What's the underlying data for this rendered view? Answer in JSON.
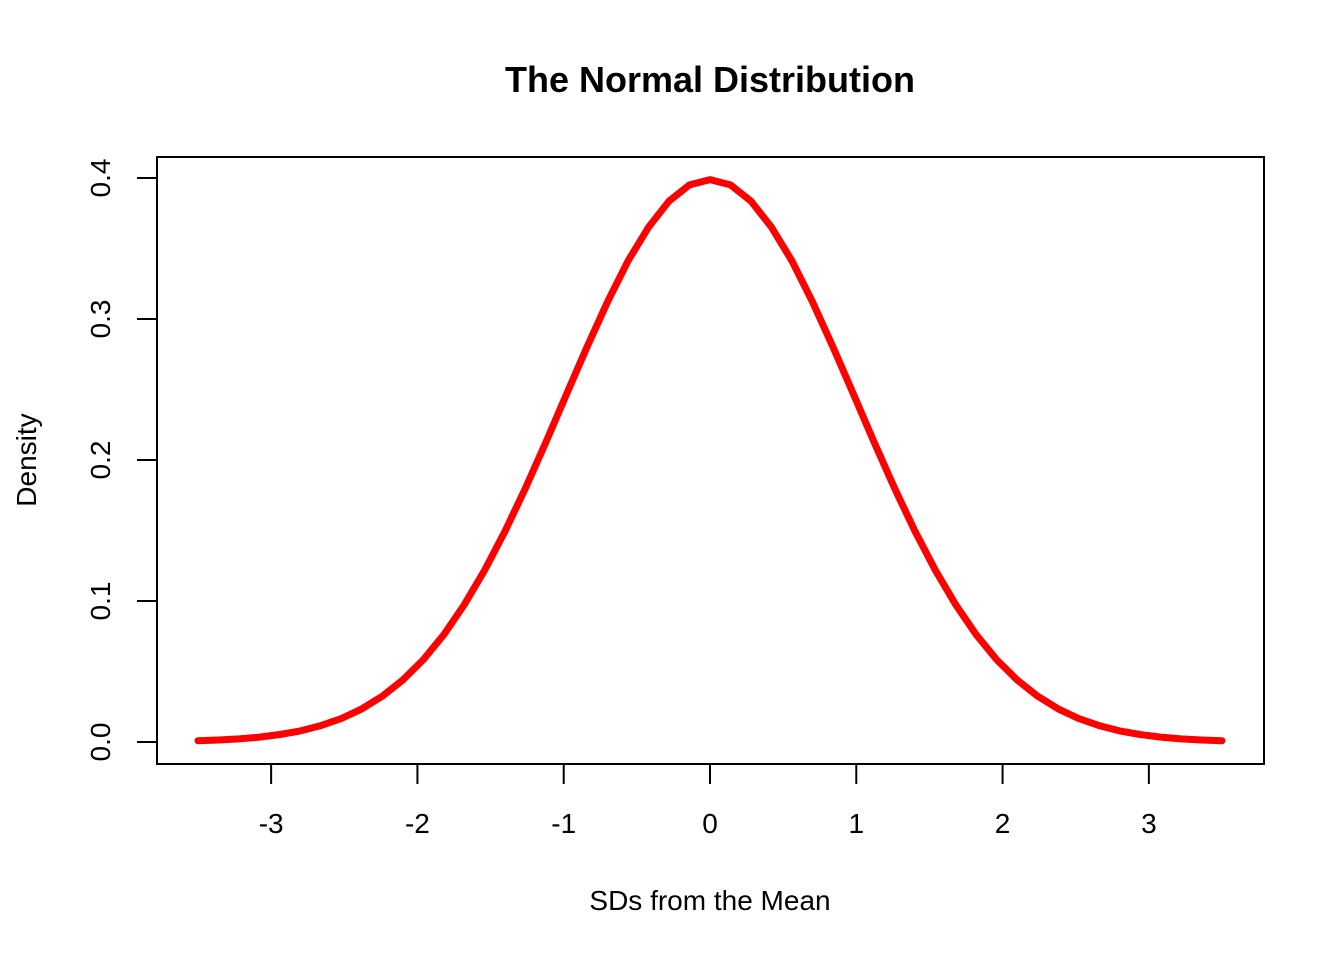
{
  "chart_data": {
    "type": "line",
    "title": "The Normal Distribution",
    "xlabel": "SDs from the Mean",
    "ylabel": "Density",
    "xlim": [
      -3.5,
      3.5
    ],
    "ylim": [
      0.0,
      0.4
    ],
    "x_ticks": [
      -3,
      -2,
      -1,
      0,
      1,
      2,
      3
    ],
    "x_tick_labels": [
      "-3",
      "-2",
      "-1",
      "0",
      "1",
      "2",
      "3"
    ],
    "y_ticks": [
      0.0,
      0.1,
      0.2,
      0.3,
      0.4
    ],
    "y_tick_labels": [
      "0.0",
      "0.1",
      "0.2",
      "0.3",
      "0.4"
    ],
    "grid": false,
    "legend": "none",
    "series": [
      {
        "color": "#ff0000",
        "x": [
          -3.5,
          -3.36,
          -3.22,
          -3.08,
          -2.94,
          -2.8,
          -2.66,
          -2.52,
          -2.38,
          -2.24,
          -2.1,
          -1.96,
          -1.82,
          -1.68,
          -1.54,
          -1.4,
          -1.26,
          -1.12,
          -0.98,
          -0.84,
          -0.7,
          -0.56,
          -0.42,
          -0.28,
          -0.14,
          0.0,
          0.14,
          0.28,
          0.42,
          0.56,
          0.7,
          0.84,
          0.98,
          1.12,
          1.26,
          1.4,
          1.54,
          1.68,
          1.82,
          1.96,
          2.1,
          2.24,
          2.38,
          2.52,
          2.66,
          2.8,
          2.94,
          3.08,
          3.22,
          3.36,
          3.5
        ],
        "y": [
          0.0009,
          0.0014,
          0.0022,
          0.0035,
          0.0053,
          0.0079,
          0.0116,
          0.0167,
          0.0235,
          0.0325,
          0.044,
          0.0584,
          0.0761,
          0.0973,
          0.1219,
          0.1497,
          0.1804,
          0.2131,
          0.2468,
          0.2803,
          0.3123,
          0.3413,
          0.3652,
          0.3836,
          0.3951,
          0.3989,
          0.3951,
          0.3836,
          0.3652,
          0.3413,
          0.3123,
          0.2803,
          0.2468,
          0.2131,
          0.1804,
          0.1497,
          0.1219,
          0.0973,
          0.0761,
          0.0584,
          0.044,
          0.0325,
          0.0235,
          0.0167,
          0.0116,
          0.0079,
          0.0053,
          0.0035,
          0.0022,
          0.0014,
          0.0009
        ]
      }
    ]
  }
}
